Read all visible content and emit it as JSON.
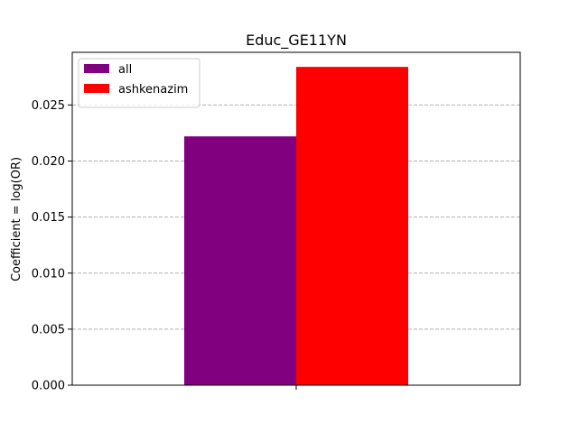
{
  "chart_data": {
    "type": "bar",
    "title": "Educ_GE11YN",
    "xlabel": "",
    "ylabel": "Coefficient = log(OR)",
    "categories": [
      ""
    ],
    "series": [
      {
        "name": "all",
        "values": [
          0.0222
        ],
        "color": "#800080"
      },
      {
        "name": "ashkenazim",
        "values": [
          0.0284
        ],
        "color": "#ff0000"
      }
    ],
    "ylim": [
      0,
      0.0297
    ],
    "yticks": [
      0.0,
      0.005,
      0.01,
      0.015,
      0.02,
      0.025
    ],
    "ytick_labels": [
      "0.000",
      "0.005",
      "0.010",
      "0.015",
      "0.020",
      "0.025"
    ],
    "grid": "horizontal dashed",
    "legend_position": "top-left"
  }
}
